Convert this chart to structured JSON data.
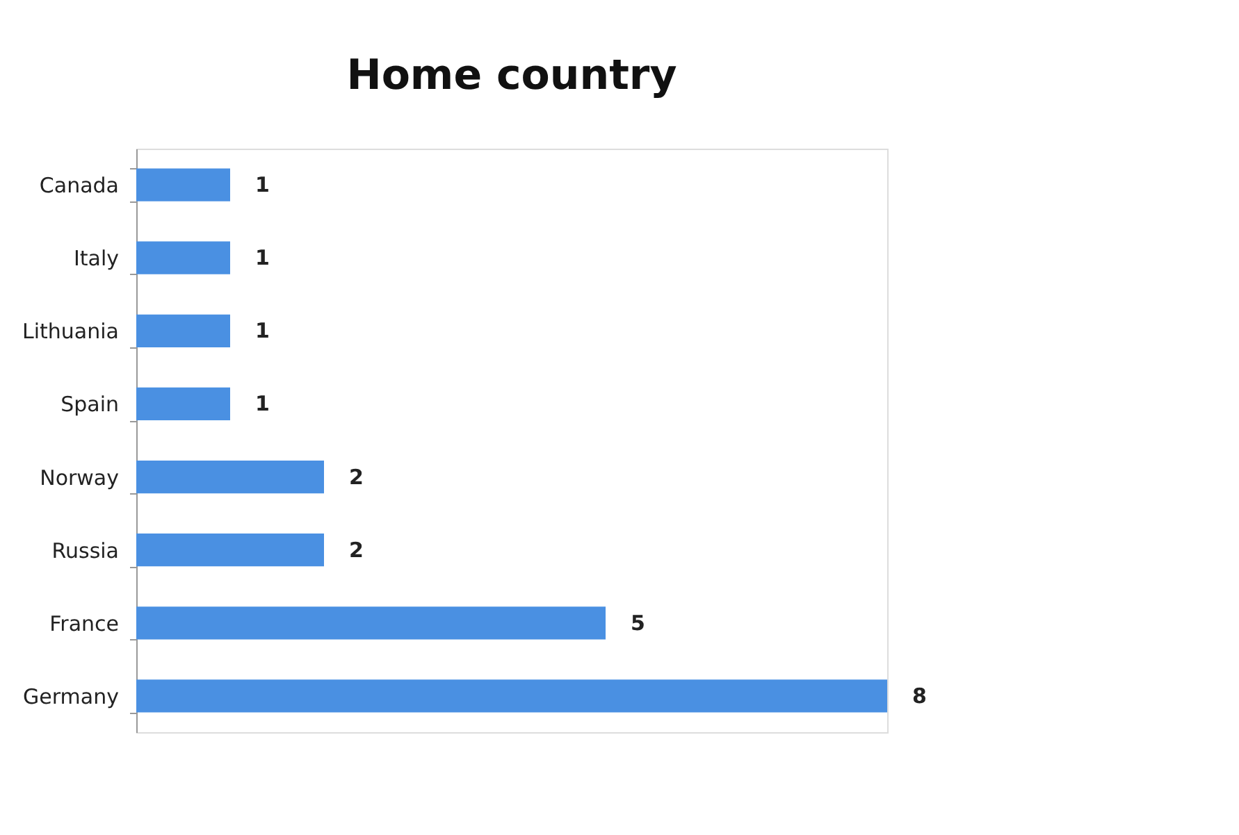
{
  "chart_data": {
    "type": "bar",
    "orientation": "horizontal",
    "title": "Home country",
    "categories": [
      "Canada",
      "Italy",
      "Lithuania",
      "Spain",
      "Norway",
      "Russia",
      "France",
      "Germany"
    ],
    "values": [
      1,
      1,
      1,
      1,
      2,
      2,
      5,
      8
    ],
    "color": "#4a90e2",
    "data_labels": true,
    "tick_labels": "y",
    "grid": false
  }
}
